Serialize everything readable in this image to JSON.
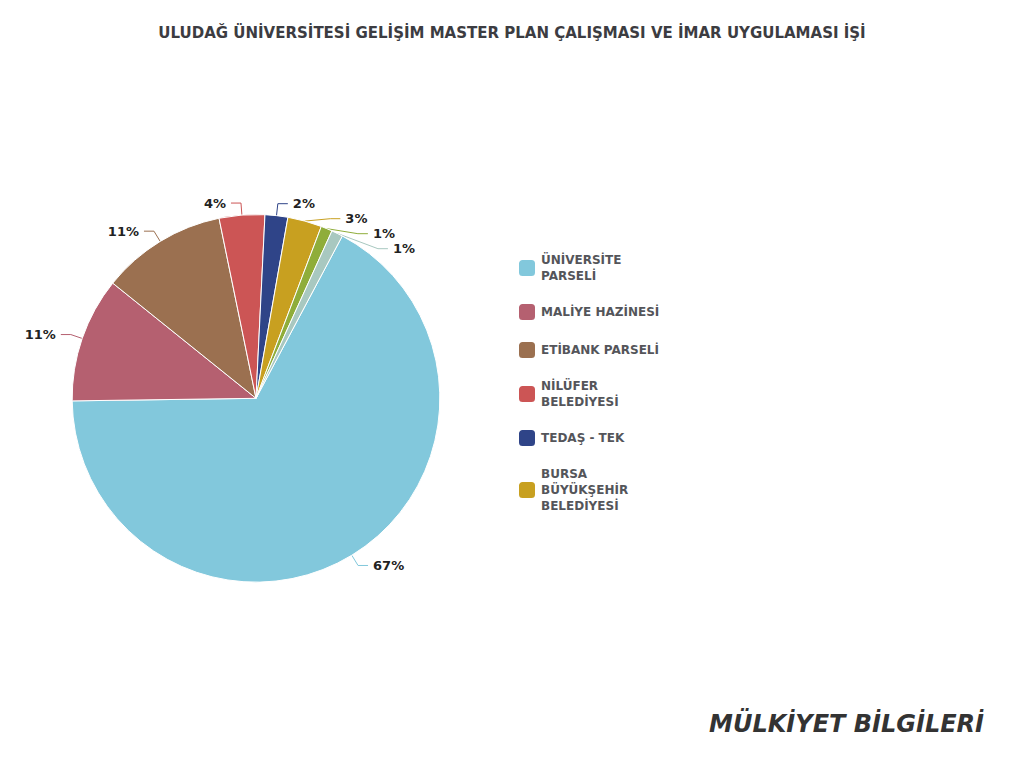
{
  "chart_data": {
    "type": "pie",
    "title": "ULUDAĞ ÜNİVERSİTESİ GELİŞİM MASTER PLAN ÇALIŞMASI VE İMAR UYGULAMASI İŞİ",
    "categories": [
      "ÜNİVERSİTE\nPARSELİ",
      "MALİYE HAZİNESİ",
      "ETİBANK PARSELİ",
      "NİLÜFER\nBELEDİYESİ",
      "TEDAŞ - TEK",
      "BURSA\nBÜYÜKŞEHİR\nBELEDİYESİ",
      null,
      null
    ],
    "values": [
      67,
      11,
      11,
      4,
      2,
      3,
      1,
      1
    ],
    "value_labels": [
      "67%",
      "11%",
      "11%",
      "4%",
      "2%",
      "3%",
      "1%",
      "1%"
    ],
    "colors": [
      "#82C8DC",
      "#B56070",
      "#9B7050",
      "#CC5555",
      "#2F4488",
      "#C8A020",
      "#8FAD3A",
      "#A8C8C0"
    ],
    "data_labels": true,
    "legend": "right",
    "annotations": [
      "MÜLKİYET BİLGİLERİ"
    ]
  }
}
